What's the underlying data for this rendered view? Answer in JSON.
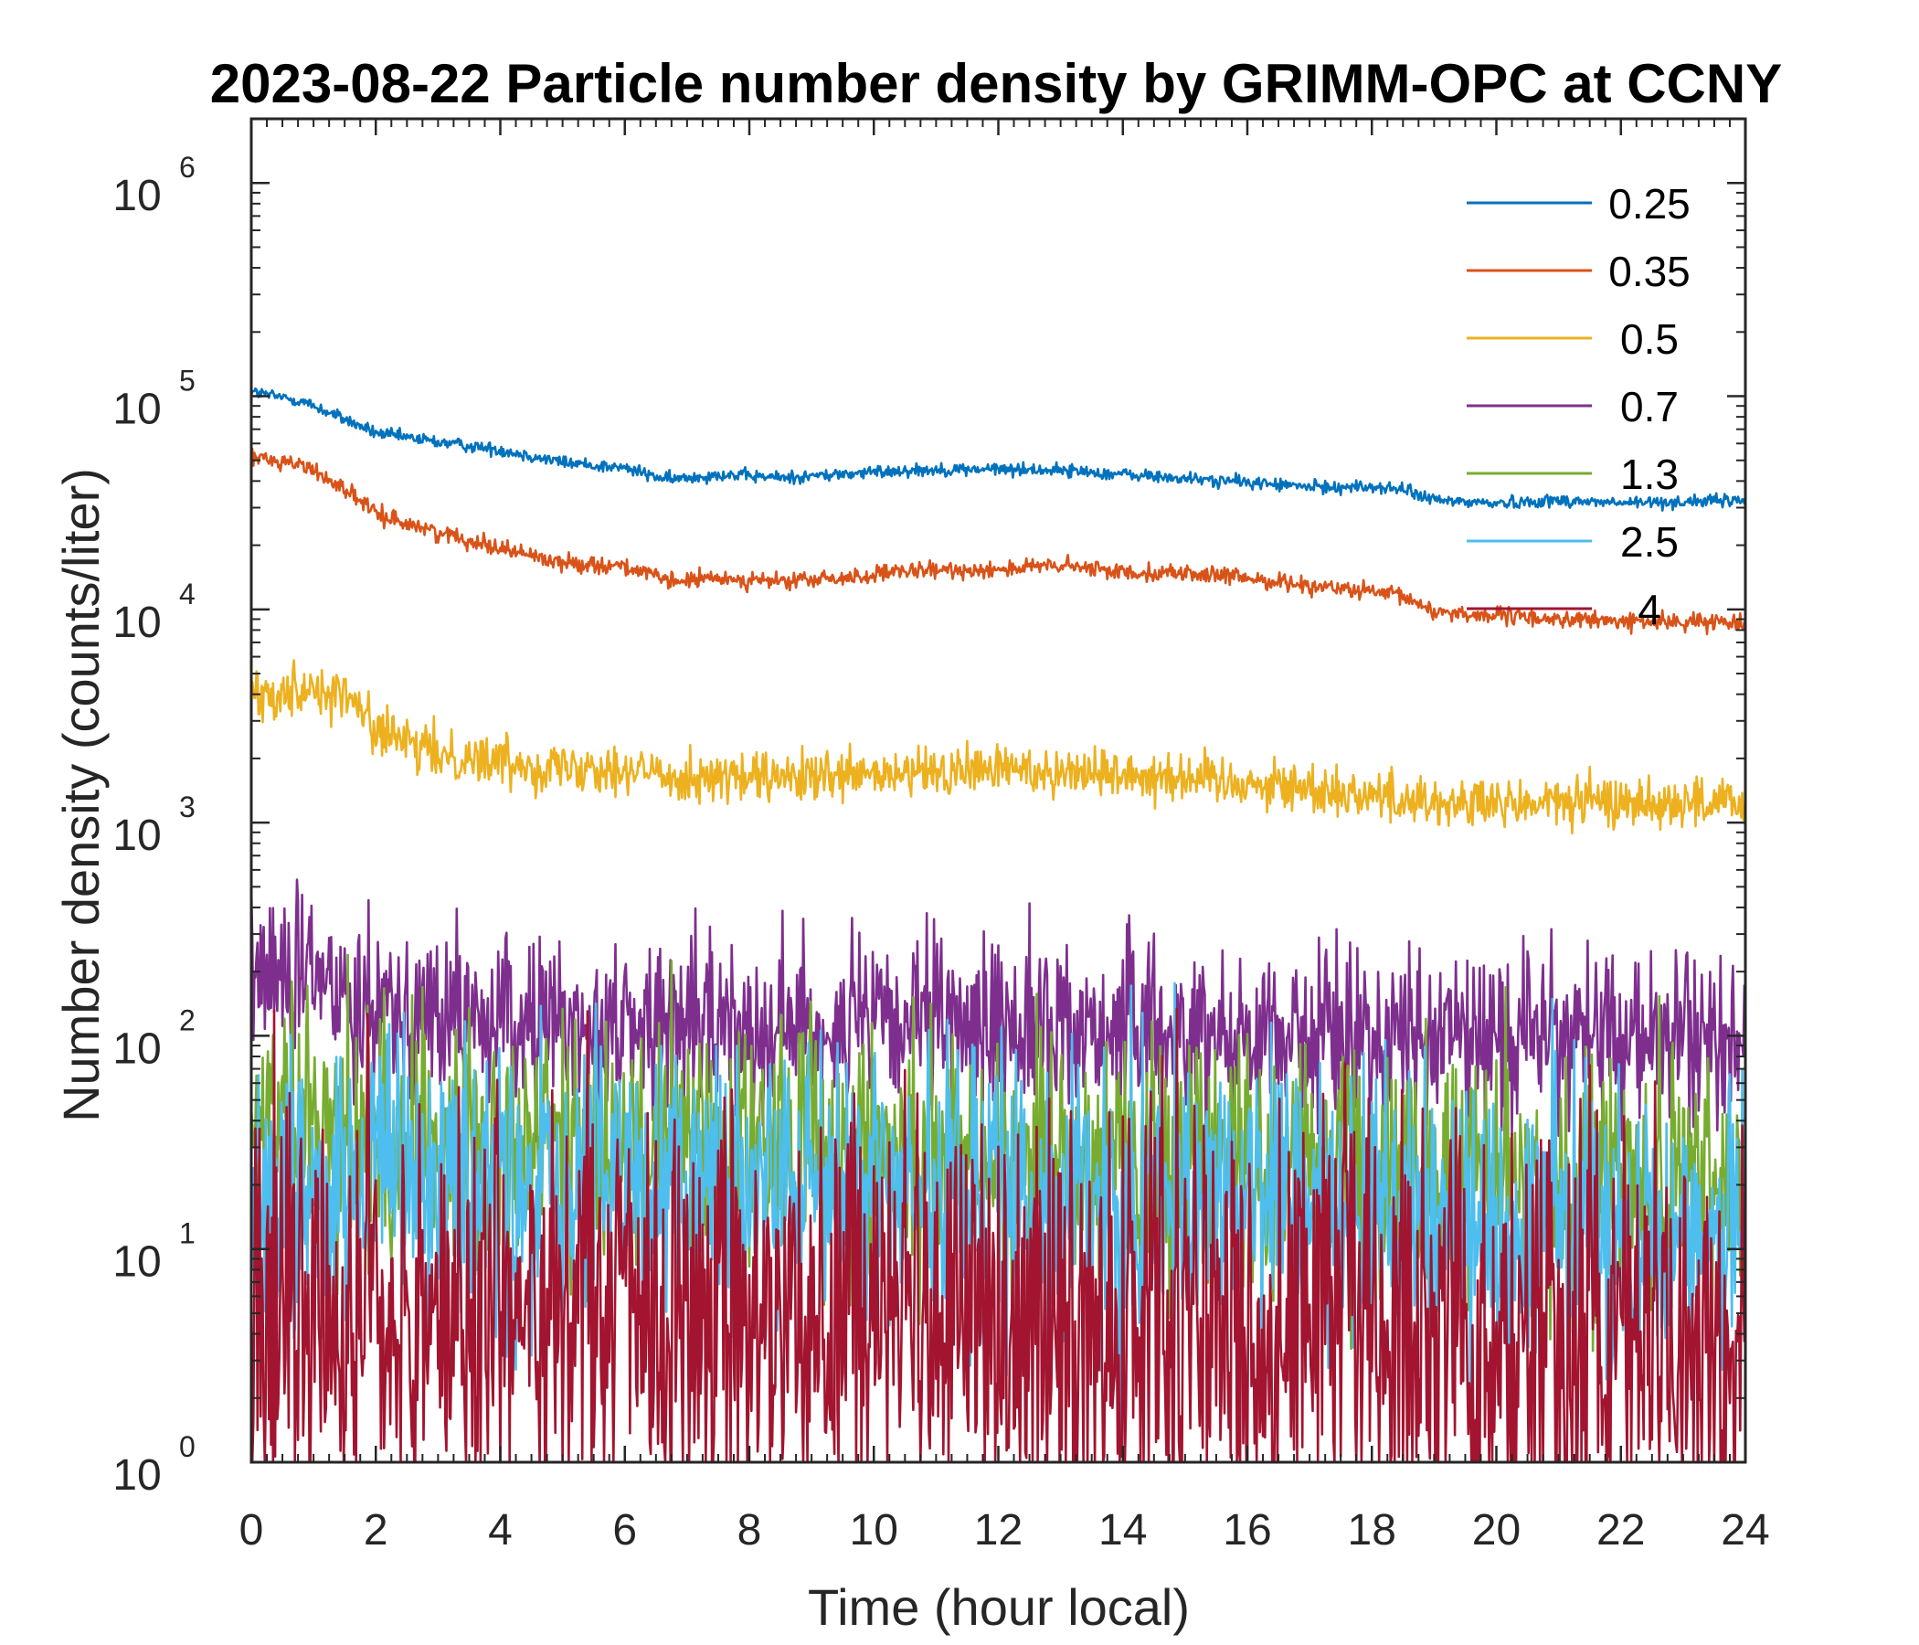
{
  "chart_data": {
    "type": "line",
    "title": "2023-08-22 Particle number density by GRIMM-OPC at CCNY",
    "xlabel": "Time (hour local)",
    "ylabel": "Number density (counts/liter)",
    "xlim": [
      0,
      24
    ],
    "ylim": [
      1,
      2000000
    ],
    "yscale": "log",
    "xticks": [
      0,
      2,
      4,
      6,
      8,
      10,
      12,
      14,
      16,
      18,
      20,
      22,
      24
    ],
    "yticks": [
      {
        "value": 1,
        "base": "10",
        "exp": "0"
      },
      {
        "value": 10,
        "base": "10",
        "exp": "1"
      },
      {
        "value": 100,
        "base": "10",
        "exp": "2"
      },
      {
        "value": 1000,
        "base": "10",
        "exp": "3"
      },
      {
        "value": 10000,
        "base": "10",
        "exp": "4"
      },
      {
        "value": 100000,
        "base": "10",
        "exp": "5"
      },
      {
        "value": 1000000,
        "base": "10",
        "exp": "6"
      }
    ],
    "legend_position": "top-right",
    "grid": false,
    "series": [
      {
        "name": "0.25",
        "color": "#0072BD",
        "x": [
          0,
          0.8,
          1.5,
          2,
          3,
          4,
          5,
          6,
          6.7,
          7.5,
          8.5,
          9.5,
          10.5,
          12,
          13,
          14,
          15,
          16,
          17,
          18,
          18.5,
          19,
          20,
          21,
          22,
          23,
          24
        ],
        "y": [
          105000,
          95000,
          78000,
          67000,
          61000,
          56000,
          49000,
          46000,
          40500,
          43000,
          41500,
          43000,
          45000,
          45500,
          45000,
          43000,
          41000,
          39500,
          37500,
          37500,
          36500,
          32500,
          31500,
          32500,
          31500,
          32000,
          32500
        ],
        "noise": 0.015
      },
      {
        "name": "0.35",
        "color": "#D95319",
        "x": [
          0,
          0.8,
          1.5,
          2,
          3,
          4,
          5,
          6,
          6.7,
          7.5,
          8.5,
          9.5,
          10.5,
          12,
          13,
          14,
          15,
          16,
          17,
          18,
          18.5,
          19,
          20,
          21,
          22,
          23,
          24
        ],
        "y": [
          52000,
          48000,
          37000,
          28000,
          23000,
          19500,
          16500,
          16000,
          13500,
          14000,
          13500,
          14000,
          15000,
          15500,
          16000,
          15000,
          14800,
          14000,
          13000,
          12000,
          11500,
          9800,
          9300,
          9000,
          8800,
          8700,
          8800
        ],
        "noise": 0.02
      },
      {
        "name": "0.5",
        "color": "#EDB120",
        "x": [
          0,
          0.5,
          1,
          1.6,
          2,
          2.5,
          3,
          4,
          5,
          5.5,
          6,
          7,
          8,
          9,
          10,
          11,
          12,
          13,
          14,
          15,
          16,
          17,
          18,
          19,
          20,
          21,
          22,
          23,
          24
        ],
        "y": [
          3900,
          4200,
          4300,
          3800,
          2800,
          2300,
          2100,
          1950,
          1800,
          1900,
          1750,
          1650,
          1600,
          1600,
          1650,
          1700,
          1800,
          1750,
          1700,
          1650,
          1550,
          1450,
          1350,
          1250,
          1200,
          1250,
          1250,
          1250,
          1200
        ],
        "noise": 0.06
      },
      {
        "name": "0.7",
        "color": "#7E2F8E",
        "x": [
          0,
          1,
          2,
          3,
          4,
          6,
          8,
          10,
          12,
          14,
          16,
          18,
          20,
          21,
          22,
          24
        ],
        "y": [
          200,
          180,
          150,
          125,
          115,
          110,
          115,
          110,
          115,
          108,
          105,
          100,
          100,
          110,
          95,
          95
        ],
        "noise": 0.2
      },
      {
        "name": "1.3",
        "color": "#77AC30",
        "x": [
          0,
          2,
          4,
          6,
          8,
          10,
          12,
          14,
          16,
          18,
          20,
          22,
          24
        ],
        "y": [
          38,
          34,
          31,
          30,
          32,
          30,
          28,
          27,
          26,
          24,
          22,
          20,
          18
        ],
        "noise": 0.3
      },
      {
        "name": "2.5",
        "color": "#4DBEEE",
        "x": [
          0,
          2,
          4,
          6,
          8,
          10,
          12,
          14,
          16,
          18,
          20,
          22,
          24
        ],
        "y": [
          22,
          20,
          19,
          19,
          20,
          19,
          18,
          17,
          16,
          15,
          14,
          13,
          12
        ],
        "noise": 0.35
      },
      {
        "name": "4",
        "color": "#A2142F",
        "x": [
          0,
          4,
          8,
          12,
          16,
          20,
          24
        ],
        "y": [
          5,
          5,
          5,
          5,
          4.5,
          4,
          3.5
        ],
        "noise": 0.5
      }
    ]
  }
}
